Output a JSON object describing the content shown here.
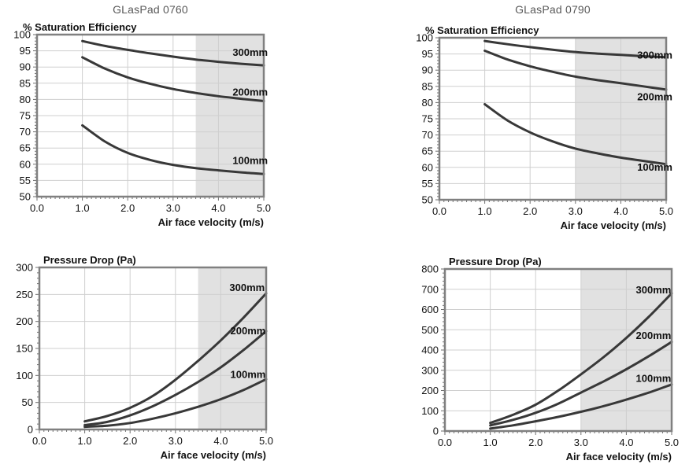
{
  "page": {
    "columns": [
      {
        "title": "GLasPad 0760"
      },
      {
        "title": "GLasPad 0790"
      }
    ]
  },
  "colors": {
    "curve": "#383838",
    "frame": "#808080",
    "grid": "#cfcfcf",
    "grid_in_shade": "#c3c3c3",
    "shade": "#e1e1e1",
    "tick_mark": "#6e6e6e",
    "text": "#111111",
    "column_title_text": "#595959"
  },
  "chart_data": [
    {
      "id": "saturation-efficiency-0760",
      "type": "line",
      "product": "GLasPad 0760",
      "title": "% Saturation Efficiency",
      "xlabel": "Air face velocity (m/s)",
      "ylabel": "% Saturation Efficiency",
      "xlim": [
        0,
        5
      ],
      "ylim": [
        50,
        100
      ],
      "xticks": [
        "0.0",
        "1.0",
        "2.0",
        "3.0",
        "4.0",
        "5.0"
      ],
      "yticks": [
        "50",
        "55",
        "60",
        "65",
        "70",
        "75",
        "80",
        "85",
        "90",
        "95",
        "100"
      ],
      "grid": "on",
      "grid_x_step": 1,
      "grid_y_step": 5,
      "x_minor_step": 0.1,
      "y_minor_step": 1,
      "shaded_region_x": [
        3.5,
        5.0
      ],
      "x": [
        1.0,
        1.5,
        2.0,
        2.5,
        3.0,
        3.5,
        4.0,
        4.5,
        5.0
      ],
      "series": [
        {
          "name": "300mm",
          "values": [
            98,
            96.5,
            95.3,
            94.2,
            93.2,
            92.3,
            91.6,
            91.0,
            90.5
          ],
          "label_pos": [
            4.7,
            94.4
          ]
        },
        {
          "name": "200mm",
          "values": [
            93,
            89.5,
            86.8,
            84.8,
            83.2,
            82.0,
            81.0,
            80.2,
            79.5
          ],
          "label_pos": [
            4.7,
            82.2
          ]
        },
        {
          "name": "100mm",
          "values": [
            72,
            67.0,
            63.5,
            61.3,
            59.8,
            58.8,
            58.1,
            57.5,
            57.0
          ],
          "label_pos": [
            4.7,
            61.0
          ]
        }
      ]
    },
    {
      "id": "saturation-efficiency-0790",
      "type": "line",
      "product": "GLasPad 0790",
      "title": "% Saturation Efficiency",
      "xlabel": "Air face velocity (m/s)",
      "ylabel": "% Saturation Efficiency",
      "xlim": [
        0,
        5
      ],
      "ylim": [
        50,
        100
      ],
      "xticks": [
        "0.0",
        "1.0",
        "2.0",
        "3.0",
        "4.0",
        "5.0"
      ],
      "yticks": [
        "50",
        "55",
        "60",
        "65",
        "70",
        "75",
        "80",
        "85",
        "90",
        "95",
        "100"
      ],
      "grid": "on",
      "grid_x_step": 1,
      "grid_y_step": 5,
      "x_minor_step": 0.1,
      "y_minor_step": 1,
      "shaded_region_x": [
        3.0,
        5.0
      ],
      "x": [
        1.0,
        1.5,
        2.0,
        2.5,
        3.0,
        3.5,
        4.0,
        4.5,
        5.0
      ],
      "series": [
        {
          "name": "300mm",
          "values": [
            99,
            98.0,
            97.1,
            96.3,
            95.6,
            95.1,
            94.7,
            94.3,
            94.0
          ],
          "label_pos": [
            4.75,
            94.5
          ]
        },
        {
          "name": "200mm",
          "values": [
            96,
            93.3,
            91.2,
            89.5,
            88.0,
            86.9,
            86.0,
            85.0,
            84.0
          ],
          "label_pos": [
            4.75,
            81.7
          ]
        },
        {
          "name": "100mm",
          "values": [
            79.5,
            74.5,
            70.8,
            68.0,
            65.8,
            64.3,
            63.0,
            62.0,
            61.0
          ],
          "label_pos": [
            4.75,
            60.0
          ]
        }
      ]
    },
    {
      "id": "pressure-drop-0760",
      "type": "line",
      "product": "GLasPad 0760",
      "title": "Pressure Drop (Pa)",
      "xlabel": "Air face velocity (m/s)",
      "ylabel": "Pressure Drop (Pa)",
      "xlim": [
        0,
        5
      ],
      "ylim": [
        0,
        300
      ],
      "xticks": [
        "0.0",
        "1.0",
        "2.0",
        "3.0",
        "4.0",
        "5.0"
      ],
      "yticks": [
        "0",
        "50",
        "100",
        "150",
        "200",
        "250",
        "300"
      ],
      "grid": "on",
      "grid_x_step": 1,
      "grid_y_step": 50,
      "x_minor_step": 0.1,
      "y_minor_step": 10,
      "shaded_region_x": [
        3.5,
        5.0
      ],
      "x": [
        1.0,
        1.5,
        2.0,
        2.5,
        3.0,
        3.5,
        4.0,
        4.5,
        5.0
      ],
      "series": [
        {
          "name": "300mm",
          "values": [
            15,
            25,
            40,
            62,
            92,
            127,
            165,
            207,
            252
          ],
          "label_pos": [
            4.58,
            262
          ]
        },
        {
          "name": "200mm",
          "values": [
            8,
            14,
            26,
            43,
            64,
            88,
            115,
            147,
            182
          ],
          "label_pos": [
            4.6,
            182
          ]
        },
        {
          "name": "100mm",
          "values": [
            5,
            7,
            12,
            20,
            30,
            42,
            56,
            73,
            93
          ],
          "label_pos": [
            4.6,
            101
          ]
        }
      ]
    },
    {
      "id": "pressure-drop-0790",
      "type": "line",
      "product": "GLasPad 0790",
      "title": "Pressure Drop (Pa)",
      "xlabel": "Air face velocity (m/s)",
      "ylabel": "Pressure Drop (Pa)",
      "xlim": [
        0,
        5
      ],
      "ylim": [
        0,
        800
      ],
      "xticks": [
        "0.0",
        "1.0",
        "2.0",
        "3.0",
        "4.0",
        "5.0"
      ],
      "yticks": [
        "0",
        "100",
        "200",
        "300",
        "400",
        "500",
        "600",
        "700",
        "800"
      ],
      "grid": "on",
      "grid_x_step": 1,
      "grid_y_step": 100,
      "x_minor_step": 0.1,
      "y_minor_step": 20,
      "shaded_region_x": [
        3.0,
        5.0
      ],
      "x": [
        1.0,
        1.5,
        2.0,
        2.5,
        3.0,
        3.5,
        4.0,
        4.5,
        5.0
      ],
      "series": [
        {
          "name": "300mm",
          "values": [
            40,
            80,
            130,
            200,
            280,
            365,
            460,
            565,
            680
          ],
          "label_pos": [
            4.6,
            695
          ]
        },
        {
          "name": "200mm",
          "values": [
            28,
            55,
            90,
            135,
            190,
            245,
            305,
            370,
            440
          ],
          "label_pos": [
            4.6,
            470
          ]
        },
        {
          "name": "100mm",
          "values": [
            12,
            28,
            48,
            70,
            95,
            123,
            155,
            190,
            230
          ],
          "label_pos": [
            4.6,
            258
          ]
        }
      ]
    }
  ]
}
